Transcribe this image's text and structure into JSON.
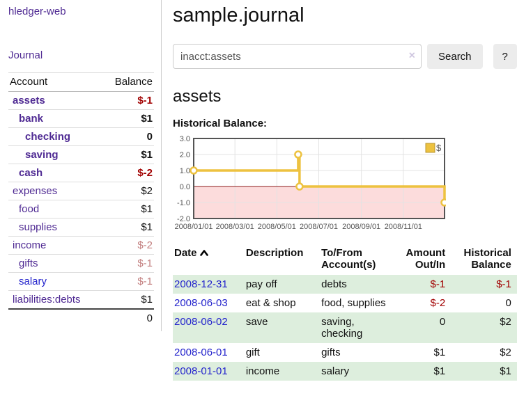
{
  "colors": {
    "link_purple": "#4f2a93",
    "link_blue": "#2323cc",
    "negative_red": "#a10000",
    "negative_muted": "#c27e7e",
    "stripe_green": "#ddeedd",
    "chart_gold": "#edc240",
    "chart_negative_region": "#fcdcdc",
    "chart_zero_line": "#8e1a1a",
    "chart_border": "#545454",
    "button_bg": "#ececec"
  },
  "sidebar": {
    "app_title": "hledger-web",
    "nav": {
      "journal_label": "Journal"
    },
    "accounts_table": {
      "headers": {
        "account": "Account",
        "balance": "Balance"
      },
      "rows": [
        {
          "name": "assets",
          "indent": 1,
          "bold": true,
          "balance": "$-1",
          "balance_color": "negative"
        },
        {
          "name": "bank",
          "indent": 2,
          "bold": true,
          "balance": "$1",
          "balance_color": "normal"
        },
        {
          "name": "checking",
          "indent": 3,
          "bold": true,
          "balance": "0",
          "balance_color": "normal"
        },
        {
          "name": "saving",
          "indent": 3,
          "bold": true,
          "balance": "$1",
          "balance_color": "normal"
        },
        {
          "name": "cash",
          "indent": 2,
          "bold": true,
          "balance": "$-2",
          "balance_color": "negative"
        },
        {
          "name": "expenses",
          "indent": 1,
          "bold": false,
          "balance": "$2",
          "balance_color": "normal"
        },
        {
          "name": "food",
          "indent": 2,
          "bold": false,
          "balance": "$1",
          "balance_color": "normal"
        },
        {
          "name": "supplies",
          "indent": 2,
          "bold": false,
          "balance": "$1",
          "balance_color": "normal"
        },
        {
          "name": "income",
          "indent": 1,
          "bold": false,
          "balance": "$-2",
          "balance_color": "negative-muted"
        },
        {
          "name": "gifts",
          "indent": 2,
          "bold": false,
          "balance": "$-1",
          "balance_color": "negative-muted"
        },
        {
          "name": "salary",
          "indent": 2,
          "bold": false,
          "balance": "$-1",
          "balance_color": "negative-muted",
          "link_style": "blue"
        },
        {
          "name": "liabilities:debts",
          "indent": 1,
          "bold": false,
          "balance": "$1",
          "balance_color": "normal"
        }
      ],
      "total": "0"
    }
  },
  "main": {
    "page_title": "sample.journal",
    "search": {
      "value": "inacct:assets",
      "clear_icon": "×",
      "button_label": "Search",
      "help_label": "?"
    },
    "account_heading": "assets",
    "chart_title": "Historical Balance:",
    "register_table": {
      "headers": {
        "date": "Date",
        "description": "Description",
        "accounts": "To/From Account(s)",
        "amount": "Amount Out/In",
        "balance": "Historical Balance"
      },
      "rows": [
        {
          "date": "2008-12-31",
          "description": "pay off",
          "accounts": "debts",
          "amount": "$-1",
          "amount_negative": true,
          "balance": "$-1",
          "balance_negative": true
        },
        {
          "date": "2008-06-03",
          "description": "eat & shop",
          "accounts": "food, supplies",
          "amount": "$-2",
          "amount_negative": true,
          "balance": "0",
          "balance_negative": false
        },
        {
          "date": "2008-06-02",
          "description": "save",
          "accounts": "saving, checking",
          "amount": "0",
          "amount_negative": false,
          "balance": "$2",
          "balance_negative": false
        },
        {
          "date": "2008-06-01",
          "description": "gift",
          "accounts": "gifts",
          "amount": "$1",
          "amount_negative": false,
          "balance": "$2",
          "balance_negative": false
        },
        {
          "date": "2008-01-01",
          "description": "income",
          "accounts": "salary",
          "amount": "$1",
          "amount_negative": false,
          "balance": "$1",
          "balance_negative": false
        }
      ]
    }
  },
  "chart_data": {
    "type": "line",
    "step": true,
    "title": "Historical Balance:",
    "series": [
      {
        "name": "$",
        "color": "#edc240",
        "x": [
          "2008-01-01",
          "2008-06-01",
          "2008-06-03",
          "2008-12-31"
        ],
        "y": [
          1,
          2,
          0,
          -1
        ]
      }
    ],
    "x_range": [
      "2008-01-01",
      "2008-12-31"
    ],
    "ylim": [
      -2,
      3
    ],
    "yticks": [
      "3.0",
      "2.0",
      "1.0",
      "0.0",
      "-1.0",
      "-2.0"
    ],
    "xticks": [
      "2008/01/01",
      "2008/03/01",
      "2008/05/01",
      "2008/07/01",
      "2008/09/01",
      "2008/11/01"
    ],
    "legend": [
      "$"
    ],
    "legend_position": "top-right",
    "grid": true,
    "negative_region_color": "#fcdcdc",
    "zero_line_color": "#8e1a1a"
  }
}
